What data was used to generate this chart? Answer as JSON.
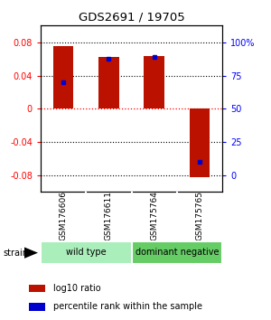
{
  "title": "GDS2691 / 19705",
  "samples": [
    "GSM176606",
    "GSM176611",
    "GSM175764",
    "GSM175765"
  ],
  "log10_ratios": [
    0.075,
    0.062,
    0.063,
    -0.082
  ],
  "percentile_ranks": [
    0.66,
    0.8,
    0.81,
    0.18
  ],
  "groups": [
    {
      "label": "wild type",
      "samples": [
        0,
        1
      ],
      "color": "#90EE90"
    },
    {
      "label": "dominant negative",
      "samples": [
        2,
        3
      ],
      "color": "#66CC66"
    }
  ],
  "group_label": "strain",
  "ylim": [
    -0.1,
    0.1
  ],
  "yticks_left": [
    -0.08,
    -0.04,
    0,
    0.04,
    0.08
  ],
  "yticks_right": [
    0,
    25,
    50,
    75,
    100
  ],
  "bar_color": "#BB1100",
  "percentile_color": "#0000CC",
  "bar_width": 0.45,
  "background_color": "#ffffff",
  "legend_red_label": "log10 ratio",
  "legend_blue_label": "percentile rank within the sample",
  "label_box_color": "#cccccc",
  "divider_color": "#ffffff",
  "wild_type_color": "#aaeebb",
  "dom_neg_color": "#66cc66"
}
